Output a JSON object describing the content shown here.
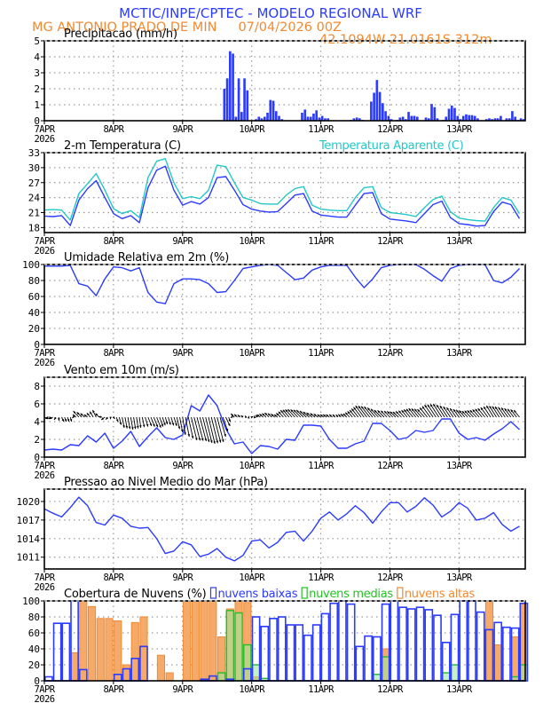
{
  "header": {
    "title": "MCTIC/INPE/CPTEC - MODELO REGIONAL WRF",
    "location": "MG ANTONIO PRADO DE MIN",
    "run": "07/04/2026 00Z",
    "coords": "42.1094W 21.0161S 312m"
  },
  "colors": {
    "blue": "#2b3bff",
    "orange": "#f08a32",
    "cyan": "#22c8c8",
    "green": "#22c022",
    "grid": "#9a9a9a"
  },
  "time_axis": {
    "unit": "hours since 7APR2026 00Z",
    "xlim": [
      0,
      167
    ],
    "step_hours": 3,
    "tick_labels": [
      "7APR",
      "8APR",
      "9APR",
      "10APR",
      "11APR",
      "12APR",
      "13APR"
    ],
    "year_label": "2026"
  },
  "chart_data": [
    {
      "id": "precip",
      "type": "bar",
      "title": "Precipitacao (mm/h)",
      "ylim": [
        0,
        5
      ],
      "yticks": [
        0,
        1,
        2,
        3,
        4,
        5
      ],
      "series": [
        {
          "name": "Precipitacao (mm/h)",
          "color": "#2b3bff",
          "points": [
            [
              62,
              2.0
            ],
            [
              63,
              2.65
            ],
            [
              64,
              4.35
            ],
            [
              65,
              4.2
            ],
            [
              66,
              0.25
            ],
            [
              67,
              2.65
            ],
            [
              68,
              0.55
            ],
            [
              69,
              2.65
            ],
            [
              70,
              1.9
            ],
            [
              73,
              0.1
            ],
            [
              74,
              0.25
            ],
            [
              75,
              0.15
            ],
            [
              76,
              0.25
            ],
            [
              77,
              0.5
            ],
            [
              78,
              1.3
            ],
            [
              79,
              1.25
            ],
            [
              80,
              0.6
            ],
            [
              81,
              0.3
            ],
            [
              82,
              0.1
            ],
            [
              85,
              0.02
            ],
            [
              86,
              0.02
            ],
            [
              87,
              0.02
            ],
            [
              89,
              0.5
            ],
            [
              90,
              0.7
            ],
            [
              91,
              0.25
            ],
            [
              92,
              0.25
            ],
            [
              93,
              0.45
            ],
            [
              94,
              0.65
            ],
            [
              95,
              0.2
            ],
            [
              96,
              0.3
            ],
            [
              97,
              0.15
            ],
            [
              98,
              0.15
            ],
            [
              106,
              0.05
            ],
            [
              107,
              0.15
            ],
            [
              108,
              0.2
            ],
            [
              109,
              0.15
            ],
            [
              110,
              0.05
            ],
            [
              113,
              1.2
            ],
            [
              114,
              1.75
            ],
            [
              115,
              2.55
            ],
            [
              116,
              1.8
            ],
            [
              117,
              1.1
            ],
            [
              118,
              0.6
            ],
            [
              119,
              0.3
            ],
            [
              120,
              0.1
            ],
            [
              122,
              0.05
            ],
            [
              123,
              0.2
            ],
            [
              124,
              0.25
            ],
            [
              125,
              0.1
            ],
            [
              126,
              0.55
            ],
            [
              127,
              0.3
            ],
            [
              128,
              0.3
            ],
            [
              129,
              0.25
            ],
            [
              132,
              0.2
            ],
            [
              133,
              0.15
            ],
            [
              134,
              1.05
            ],
            [
              135,
              0.85
            ],
            [
              136,
              0.15
            ],
            [
              138,
              0.05
            ],
            [
              139,
              0.25
            ],
            [
              140,
              0.75
            ],
            [
              141,
              0.95
            ],
            [
              142,
              0.8
            ],
            [
              143,
              0.3
            ],
            [
              144,
              0.1
            ],
            [
              145,
              0.3
            ],
            [
              146,
              0.4
            ],
            [
              147,
              0.35
            ],
            [
              148,
              0.35
            ],
            [
              149,
              0.3
            ],
            [
              150,
              0.15
            ],
            [
              153,
              0.1
            ],
            [
              154,
              0.15
            ],
            [
              155,
              0.1
            ],
            [
              156,
              0.15
            ],
            [
              157,
              0.15
            ],
            [
              158,
              0.3
            ],
            [
              160,
              0.15
            ],
            [
              161,
              0.15
            ],
            [
              162,
              0.6
            ],
            [
              163,
              0.25
            ],
            [
              164,
              0.05
            ],
            [
              165,
              0.15
            ],
            [
              166,
              0.1
            ]
          ]
        }
      ]
    },
    {
      "id": "temperature",
      "type": "line",
      "title": "2-m Temperatura (C)",
      "ylim": [
        17,
        33
      ],
      "yticks": [
        18,
        21,
        24,
        27,
        30,
        33
      ],
      "series": [
        {
          "name": "2-m Temperatura (C)",
          "color": "#2b3bff",
          "values": [
            20.3,
            20.2,
            20.4,
            18.4,
            23.5,
            25.8,
            27.4,
            24,
            20.8,
            19.8,
            20.4,
            19,
            26,
            29.5,
            30.3,
            25.5,
            22.5,
            23.2,
            22.7,
            24,
            28,
            28.2,
            25.5,
            22.6,
            21.7,
            21.3,
            21.1,
            21.2,
            22.8,
            24.5,
            24.8,
            21.3,
            20.5,
            20.3,
            20.1,
            20.1,
            22.5,
            24.8,
            25,
            20.8,
            19.7,
            19.5,
            19.3,
            19,
            20.8,
            22.6,
            23.3,
            20,
            18.8,
            18.6,
            18.3,
            18.4,
            21.2,
            23.1,
            22.6,
            19.8
          ]
        },
        {
          "name": "Temperatura Aparente (C)",
          "color": "#22c8c8",
          "values": [
            21.5,
            21.6,
            21.5,
            19.5,
            24.8,
            26.8,
            28.8,
            25.5,
            21.8,
            20.8,
            21.4,
            20,
            28,
            31.3,
            31.8,
            27,
            23.8,
            24.2,
            23.8,
            25.5,
            30.5,
            30.2,
            27,
            24,
            23.5,
            22.8,
            22.7,
            22.7,
            24.5,
            25.8,
            26.2,
            22.5,
            21.7,
            21.5,
            21.4,
            21.4,
            24,
            26,
            26.2,
            22,
            21,
            20.8,
            20.6,
            20.2,
            22,
            23.6,
            24.3,
            21.2,
            19.9,
            19.6,
            19.4,
            19.3,
            22,
            24,
            23.5,
            20.8
          ]
        }
      ]
    },
    {
      "id": "humidity",
      "type": "line",
      "title": "Umidade Relativa em 2m (%)",
      "ylim": [
        0,
        100
      ],
      "yticks": [
        0,
        20,
        40,
        60,
        80,
        100
      ],
      "series": [
        {
          "name": "Umidade Relativa em 2m (%)",
          "color": "#2b3bff",
          "values": [
            98,
            98,
            98,
            99,
            76,
            73,
            61,
            82,
            97,
            96,
            92,
            96,
            65,
            53,
            51,
            76,
            82,
            82,
            81,
            76,
            65,
            66,
            80,
            95,
            97,
            99,
            100,
            99,
            90,
            81,
            83,
            93,
            97,
            99,
            99,
            99,
            84,
            71,
            82,
            96,
            99,
            100,
            100,
            100,
            94,
            86,
            79,
            95,
            99,
            100,
            100,
            100,
            80,
            77,
            84,
            95
          ]
        }
      ]
    },
    {
      "id": "wind",
      "type": "line",
      "title": "Vento em 10m (m/s)",
      "ylim": [
        0,
        9
      ],
      "yticks": [
        0,
        2,
        4,
        6,
        8
      ],
      "series": [
        {
          "name": "Vento em 10m (m/s)",
          "color": "#2b3bff",
          "values": [
            0.8,
            0.9,
            0.8,
            1.4,
            1.3,
            2.4,
            1.7,
            2.7,
            1.0,
            1.8,
            2.9,
            1.2,
            2.3,
            3.3,
            2.2,
            2.0,
            2.5,
            5.8,
            5.2,
            7.0,
            5.8,
            3.2,
            1.5,
            1.7,
            0.4,
            1.3,
            1.2,
            0.9,
            2.0,
            1.9,
            3.6,
            3.6,
            3.5,
            2.0,
            1.0,
            1.0,
            1.5,
            1.8,
            3.8,
            3.8,
            3.0,
            2.0,
            2.2,
            3.0,
            2.8,
            3.0,
            4.3,
            4.3,
            2.7,
            2.0,
            2.2,
            1.9,
            2.6,
            3.2,
            4.0,
            3.1
          ]
        }
      ],
      "vectors": {
        "baseline": 4.5,
        "u": [
          0.5,
          -0.5,
          0.3,
          0.2,
          -0.8,
          -0.5,
          -0.5,
          -0.5,
          0.2,
          0.3,
          0.3,
          0.2,
          0.5,
          0.6,
          0.3,
          0.4,
          0.4,
          0.8,
          0.9,
          0.9,
          0.9,
          0.6,
          -0.5,
          -0.3,
          0.2,
          -0.5,
          -0.6,
          -0.5,
          -0.8,
          -1.0,
          -1.0,
          -0.8,
          -0.5,
          -0.5,
          -0.3,
          -0.5,
          -0.8,
          -1.2,
          -1.2,
          -1.0,
          -0.8,
          -0.8,
          -0.8,
          -1.0,
          -1.0,
          -1.2,
          -1.2,
          -1.0,
          -0.8,
          -0.8,
          -0.9,
          -1.0,
          -1.0,
          -1.0,
          -0.9,
          -0.8
        ],
        "v": [
          -0.2,
          -0.2,
          -0.5,
          -0.5,
          0.7,
          0.3,
          0.8,
          -0.3,
          -0.2,
          -1.2,
          -1.4,
          -1.2,
          -1.0,
          -1.2,
          -0.8,
          -1.0,
          -2.0,
          -2.6,
          -2.7,
          -3.0,
          -2.8,
          -1.0,
          0.4,
          0.2,
          0.1,
          0.3,
          0.5,
          0.3,
          0.8,
          0.9,
          0.8,
          0.5,
          0.3,
          0.3,
          0.3,
          0.4,
          0.8,
          1.3,
          1.2,
          0.8,
          0.7,
          0.6,
          0.8,
          1.0,
          0.9,
          1.4,
          1.5,
          1.2,
          0.9,
          0.7,
          0.8,
          1.0,
          1.3,
          1.2,
          1.0,
          0.8
        ]
      }
    },
    {
      "id": "pressure",
      "type": "line",
      "title": "Pressao ao Nivel Medio do Mar (hPa)",
      "ylim": [
        1009.1,
        1022
      ],
      "yticks": [
        1011,
        1014,
        1017,
        1020
      ],
      "series": [
        {
          "name": "Pressao ao Nivel Medio do Mar (hPa)",
          "color": "#2b3bff",
          "values": [
            1018.8,
            1018.1,
            1017.5,
            1019.0,
            1020.7,
            1019.3,
            1016.6,
            1016.2,
            1017.8,
            1017.3,
            1016.0,
            1015.7,
            1015.8,
            1014.0,
            1011.6,
            1012.0,
            1013.5,
            1013.0,
            1011.1,
            1011.5,
            1012.4,
            1011.0,
            1010.4,
            1011.3,
            1013.6,
            1013.8,
            1012.5,
            1013.4,
            1015.0,
            1015.2,
            1013.6,
            1015.2,
            1017.3,
            1018.3,
            1017.0,
            1018.0,
            1019.3,
            1018.2,
            1016.5,
            1018.3,
            1019.8,
            1019.8,
            1018.3,
            1019.2,
            1020.6,
            1019.4,
            1017.5,
            1018.4,
            1019.8,
            1018.9,
            1017.0,
            1017.3,
            1018.2,
            1016.3,
            1015.2,
            1016.0
          ]
        }
      ]
    },
    {
      "id": "clouds",
      "type": "bar",
      "title": "Cobertura de Nuvens (%)",
      "ylim": [
        0,
        100
      ],
      "yticks": [
        0,
        20,
        40,
        60,
        80,
        100
      ],
      "series": [
        {
          "name": "nuvens altas",
          "color": "#f08a32",
          "values": [
            0,
            0,
            0,
            35,
            100,
            93,
            78,
            78,
            75,
            20,
            73,
            80,
            0,
            32,
            10,
            0,
            100,
            100,
            100,
            100,
            55,
            90,
            100,
            98,
            5,
            0,
            0,
            0,
            0,
            0,
            0,
            0,
            0,
            0,
            0,
            0,
            0,
            0,
            0,
            40,
            0,
            0,
            0,
            0,
            0,
            0,
            0,
            0,
            0,
            0,
            0,
            100,
            45,
            0,
            55,
            97
          ]
        },
        {
          "name": "nuvens medias",
          "color": "#22c022",
          "values": [
            0,
            0,
            0,
            0,
            0,
            0,
            0,
            0,
            0,
            0,
            0,
            0,
            0,
            0,
            0,
            0,
            0,
            0,
            0,
            0,
            10,
            88,
            85,
            45,
            20,
            3,
            0,
            0,
            0,
            0,
            0,
            0,
            0,
            0,
            0,
            0,
            0,
            0,
            8,
            30,
            0,
            0,
            0,
            0,
            0,
            0,
            10,
            20,
            0,
            0,
            0,
            0,
            0,
            0,
            5,
            20
          ]
        },
        {
          "name": "nuvens baixas",
          "color": "#2b3bff",
          "values": [
            5,
            72,
            72,
            100,
            14,
            0,
            0,
            0,
            8,
            15,
            28,
            43,
            0,
            0,
            0,
            0,
            0,
            0,
            2,
            6,
            0,
            2,
            0,
            15,
            80,
            68,
            78,
            80,
            70,
            70,
            57,
            70,
            84,
            97,
            100,
            96,
            43,
            56,
            55,
            96,
            100,
            92,
            90,
            92,
            89,
            82,
            48,
            83,
            100,
            100,
            86,
            64,
            73,
            67,
            66,
            97
          ]
        }
      ]
    }
  ]
}
